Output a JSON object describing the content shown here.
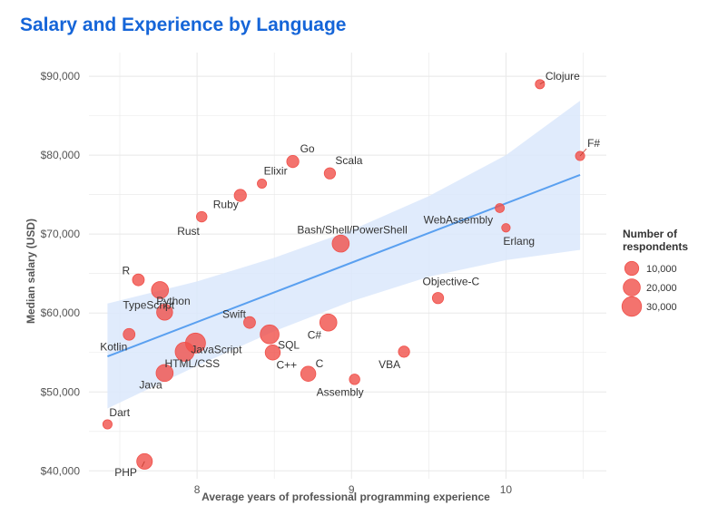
{
  "colors": {
    "title": "#1565d8",
    "point": "#f0504a",
    "band": "#dbe8fb",
    "trend": "#5aa0f0",
    "grid": "#e8e8e8"
  },
  "chart_data": {
    "type": "scatter",
    "title": "Salary and Experience by Language",
    "xlabel": "Average years of professional programming experience",
    "ylabel": "Median salary (USD)",
    "xlim": [
      7.3,
      10.65
    ],
    "ylim": [
      39000,
      93000
    ],
    "x_ticks": [
      8,
      9,
      10
    ],
    "x_tick_labels": [
      "8",
      "9",
      "10"
    ],
    "y_ticks": [
      40000,
      50000,
      60000,
      70000,
      80000,
      90000
    ],
    "y_tick_labels": [
      "$40,000",
      "$50,000",
      "$60,000",
      "$70,000",
      "$80,000",
      "$90,000"
    ],
    "trend": {
      "x": [
        7.42,
        10.48
      ],
      "y": [
        54500,
        77500
      ]
    },
    "confidence_band": {
      "x": [
        7.42,
        8.0,
        8.5,
        9.0,
        9.5,
        10.0,
        10.48
      ],
      "upper": [
        61200,
        64000,
        67000,
        70500,
        74800,
        80000,
        86900
      ],
      "lower": [
        47900,
        53300,
        57700,
        61500,
        64600,
        66700,
        68000
      ]
    },
    "legend": {
      "title_lines": [
        "Number of",
        "respondents"
      ],
      "entries": [
        {
          "label": "10,000",
          "value": 10000
        },
        {
          "label": "20,000",
          "value": 20000
        },
        {
          "label": "30,000",
          "value": 30000
        }
      ]
    },
    "points": [
      {
        "label": "Clojure",
        "x": 10.22,
        "y": 89000,
        "n": 1500
      },
      {
        "label": "F#",
        "x": 10.48,
        "y": 79900,
        "n": 1500
      },
      {
        "label": "Go",
        "x": 8.62,
        "y": 79200,
        "n": 6000
      },
      {
        "label": "Scala",
        "x": 8.86,
        "y": 77700,
        "n": 4000
      },
      {
        "label": "Elixir",
        "x": 8.42,
        "y": 76400,
        "n": 1500
      },
      {
        "label": "Ruby",
        "x": 8.28,
        "y": 74900,
        "n": 6000
      },
      {
        "label": "Rust",
        "x": 8.03,
        "y": 72200,
        "n": 3000
      },
      {
        "label": "WebAssembly",
        "x": 9.96,
        "y": 73300,
        "n": 1200
      },
      {
        "label": "Erlang",
        "x": 10.0,
        "y": 70800,
        "n": 800
      },
      {
        "label": "Bash/Shell/PowerShell",
        "x": 8.93,
        "y": 68800,
        "n": 20000
      },
      {
        "label": "R",
        "x": 7.62,
        "y": 64200,
        "n": 5000
      },
      {
        "label": "Python",
        "x": 7.76,
        "y": 62900,
        "n": 20000
      },
      {
        "label": "Objective-C",
        "x": 9.56,
        "y": 61900,
        "n": 4000
      },
      {
        "label": "Swift",
        "x": 8.34,
        "y": 58800,
        "n": 5000
      },
      {
        "label": "C#",
        "x": 8.85,
        "y": 58800,
        "n": 20000
      },
      {
        "label": "TypeScript",
        "x": 7.79,
        "y": 60100,
        "n": 16000
      },
      {
        "label": "Kotlin",
        "x": 7.56,
        "y": 57300,
        "n": 5000
      },
      {
        "label": "JavaScript",
        "x": 7.99,
        "y": 56200,
        "n": 32000
      },
      {
        "label": "SQL",
        "x": 8.47,
        "y": 57300,
        "n": 27000
      },
      {
        "label": "HTML/CSS",
        "x": 7.92,
        "y": 55100,
        "n": 28000
      },
      {
        "label": "C++",
        "x": 8.49,
        "y": 55000,
        "n": 13000
      },
      {
        "label": "VBA",
        "x": 9.34,
        "y": 55100,
        "n": 4000
      },
      {
        "label": "C",
        "x": 8.72,
        "y": 52300,
        "n": 13000
      },
      {
        "label": "Java",
        "x": 7.79,
        "y": 52400,
        "n": 20000
      },
      {
        "label": "Assembly",
        "x": 9.02,
        "y": 51600,
        "n": 3000
      },
      {
        "label": "Dart",
        "x": 7.42,
        "y": 45900,
        "n": 1500
      },
      {
        "label": "PHP",
        "x": 7.66,
        "y": 41200,
        "n": 15000
      }
    ]
  }
}
